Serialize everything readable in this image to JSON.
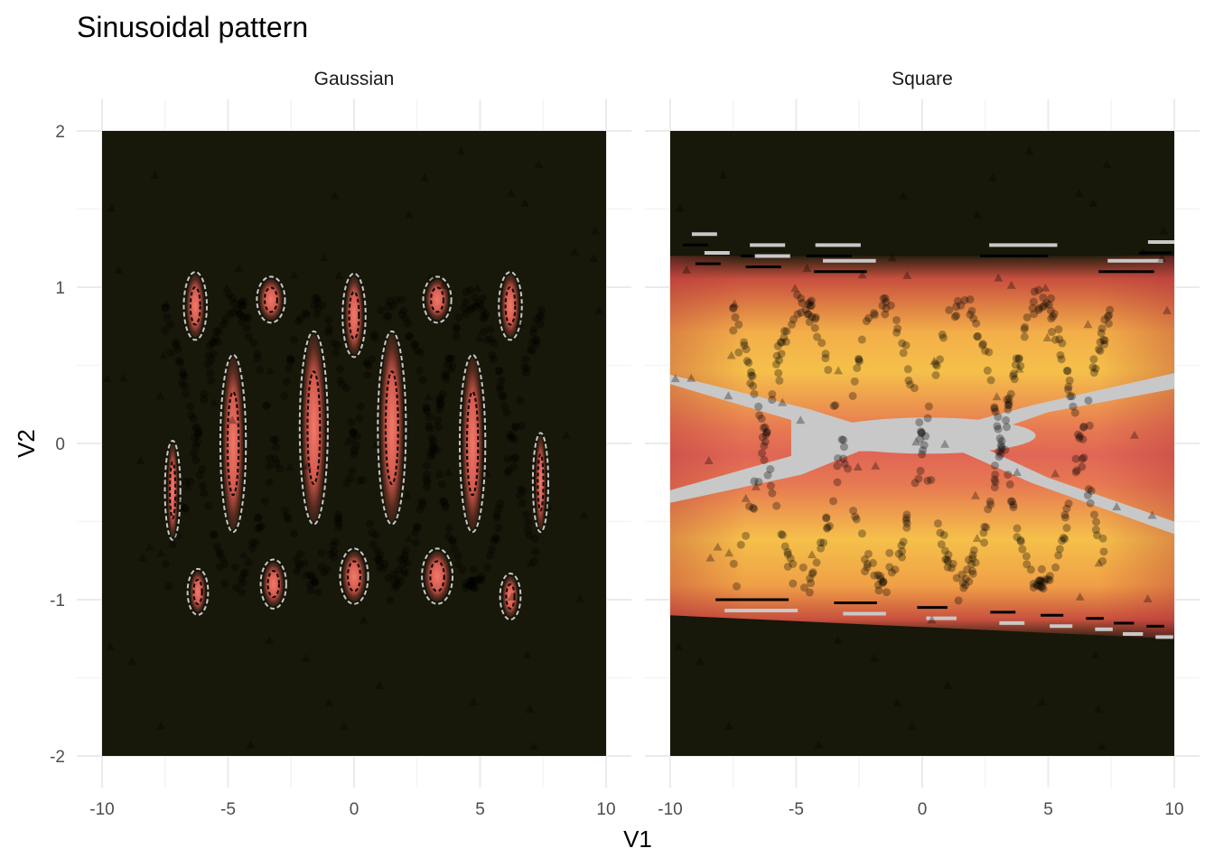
{
  "chart_data": {
    "type": "heatmap",
    "title": "Sinusoidal pattern",
    "xlabel": "V1",
    "ylabel": "V2",
    "xlim": [
      -10,
      10
    ],
    "ylim": [
      -2,
      2
    ],
    "x_ticks": [
      -10,
      -5,
      0,
      5,
      10
    ],
    "y_ticks": [
      -2,
      -1,
      0,
      1,
      2
    ],
    "x_tick_labels": [
      "-10",
      "-5",
      "0",
      "5",
      "10"
    ],
    "y_tick_labels": [
      "-2",
      "-1",
      "0",
      "1",
      "2"
    ],
    "grid": true,
    "colors": {
      "background_fill": "#17170a",
      "low_density": "#3b2418",
      "mid_density": "#e06655",
      "high_density": "#f5c04a",
      "points": "#000000",
      "contour_light": "#c8c8c8",
      "contour_dark": "#000000"
    },
    "panels": [
      {
        "strip_label": "Gaussian",
        "blobs": [
          {
            "x": -6.3,
            "y": 0.88,
            "rx": 0.35,
            "ry": 0.2
          },
          {
            "x": -3.3,
            "y": 0.92,
            "rx": 0.45,
            "ry": 0.13
          },
          {
            "x": 0.0,
            "y": 0.82,
            "rx": 0.35,
            "ry": 0.25
          },
          {
            "x": 3.3,
            "y": 0.92,
            "rx": 0.45,
            "ry": 0.13
          },
          {
            "x": 6.2,
            "y": 0.88,
            "rx": 0.35,
            "ry": 0.2
          },
          {
            "x": -4.8,
            "y": 0.0,
            "rx": 0.4,
            "ry": 0.55
          },
          {
            "x": -1.6,
            "y": 0.1,
            "rx": 0.45,
            "ry": 0.6
          },
          {
            "x": 1.5,
            "y": 0.1,
            "rx": 0.45,
            "ry": 0.6
          },
          {
            "x": 4.7,
            "y": 0.0,
            "rx": 0.4,
            "ry": 0.55
          },
          {
            "x": -7.2,
            "y": -0.3,
            "rx": 0.2,
            "ry": 0.3
          },
          {
            "x": 7.4,
            "y": -0.25,
            "rx": 0.2,
            "ry": 0.3
          },
          {
            "x": -6.2,
            "y": -0.95,
            "rx": 0.3,
            "ry": 0.13
          },
          {
            "x": -3.2,
            "y": -0.9,
            "rx": 0.4,
            "ry": 0.14
          },
          {
            "x": 0.0,
            "y": -0.85,
            "rx": 0.45,
            "ry": 0.16
          },
          {
            "x": 3.3,
            "y": -0.85,
            "rx": 0.5,
            "ry": 0.16
          },
          {
            "x": 6.2,
            "y": -0.98,
            "rx": 0.3,
            "ry": 0.13
          }
        ]
      },
      {
        "strip_label": "Square",
        "band": {
          "top_left": 1.2,
          "top_right": 1.2,
          "bottom_left": -1.1,
          "bottom_right": -1.25
        },
        "contour_segments": [
          {
            "x1": -9.5,
            "x2": -8.5,
            "y": 1.27
          },
          {
            "x1": -7.2,
            "x2": -5.8,
            "y": 1.2
          },
          {
            "x1": -4.6,
            "x2": -2.8,
            "y": 1.2
          },
          {
            "x1": 2.3,
            "x2": 5.0,
            "y": 1.2
          },
          {
            "x1": 8.6,
            "x2": 9.9,
            "y": 1.22
          },
          {
            "x1": -9.0,
            "x2": -8.0,
            "y": 1.15
          },
          {
            "x1": -7.0,
            "x2": -5.6,
            "y": 1.13
          },
          {
            "x1": -4.3,
            "x2": -2.2,
            "y": 1.1
          },
          {
            "x1": 7.0,
            "x2": 9.2,
            "y": 1.1
          },
          {
            "x1": -8.2,
            "x2": -5.3,
            "y": -1.0
          },
          {
            "x1": -3.5,
            "x2": -1.8,
            "y": -1.02
          },
          {
            "x1": -0.2,
            "x2": 1.0,
            "y": -1.05
          },
          {
            "x1": 2.7,
            "x2": 3.7,
            "y": -1.08
          },
          {
            "x1": 4.7,
            "x2": 5.6,
            "y": -1.1
          },
          {
            "x1": 6.5,
            "x2": 7.2,
            "y": -1.12
          },
          {
            "x1": 7.6,
            "x2": 8.4,
            "y": -1.15
          },
          {
            "x1": 8.9,
            "x2": 9.6,
            "y": -1.17
          }
        ]
      }
    ],
    "curve": "y = 0.9 * sin(x)"
  }
}
